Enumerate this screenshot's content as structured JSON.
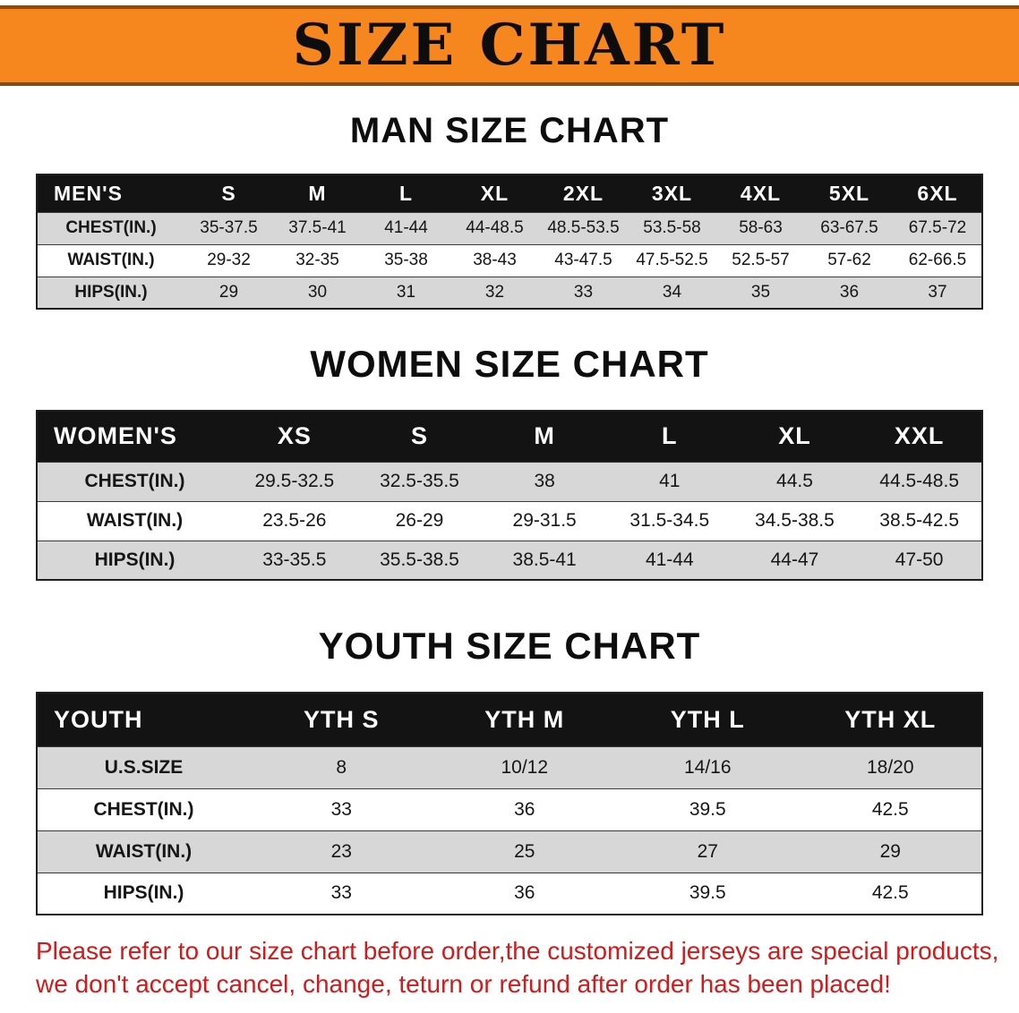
{
  "banner": {
    "title": "SIZE CHART",
    "bg_color": "#F6861E"
  },
  "sections": [
    {
      "id": "men",
      "heading": "MAN SIZE CHART",
      "table": {
        "header": [
          "MEN'S",
          "S",
          "M",
          "L",
          "XL",
          "2XL",
          "3XL",
          "4XL",
          "5XL",
          "6XL"
        ],
        "rows": [
          [
            "CHEST(IN.)",
            "35-37.5",
            "37.5-41",
            "41-44",
            "44-48.5",
            "48.5-53.5",
            "53.5-58",
            "58-63",
            "63-67.5",
            "67.5-72"
          ],
          [
            "WAIST(IN.)",
            "29-32",
            "32-35",
            "35-38",
            "38-43",
            "43-47.5",
            "47.5-52.5",
            "52.5-57",
            "57-62",
            "62-66.5"
          ],
          [
            "HIPS(IN.)",
            "29",
            "30",
            "31",
            "32",
            "33",
            "34",
            "35",
            "36",
            "37"
          ]
        ]
      }
    },
    {
      "id": "women",
      "heading": "WOMEN SIZE CHART",
      "table": {
        "header": [
          "WOMEN'S",
          "XS",
          "S",
          "M",
          "L",
          "XL",
          "XXL"
        ],
        "rows": [
          [
            "CHEST(IN.)",
            "29.5-32.5",
            "32.5-35.5",
            "38",
            "41",
            "44.5",
            "44.5-48.5"
          ],
          [
            "WAIST(IN.)",
            "23.5-26",
            "26-29",
            "29-31.5",
            "31.5-34.5",
            "34.5-38.5",
            "38.5-42.5"
          ],
          [
            "HIPS(IN.)",
            "33-35.5",
            "35.5-38.5",
            "38.5-41",
            "41-44",
            "44-47",
            "47-50"
          ]
        ]
      }
    },
    {
      "id": "youth",
      "heading": "YOUTH SIZE CHART",
      "table": {
        "header": [
          "YOUTH",
          "YTH S",
          "YTH M",
          "YTH L",
          "YTH XL"
        ],
        "rows": [
          [
            "U.S.SIZE",
            "8",
            "10/12",
            "14/16",
            "18/20"
          ],
          [
            "CHEST(IN.)",
            "33",
            "36",
            "39.5",
            "42.5"
          ],
          [
            "WAIST(IN.)",
            "23",
            "25",
            "27",
            "29"
          ],
          [
            "HIPS(IN.)",
            "33",
            "36",
            "39.5",
            "42.5"
          ]
        ]
      }
    }
  ],
  "disclaimer": {
    "line1": "Please refer to our size chart before order,the customized jerseys are special products,",
    "line2": "we don't accept cancel, change, teturn or refund after order has been placed!",
    "color": "#cf1b1b"
  }
}
